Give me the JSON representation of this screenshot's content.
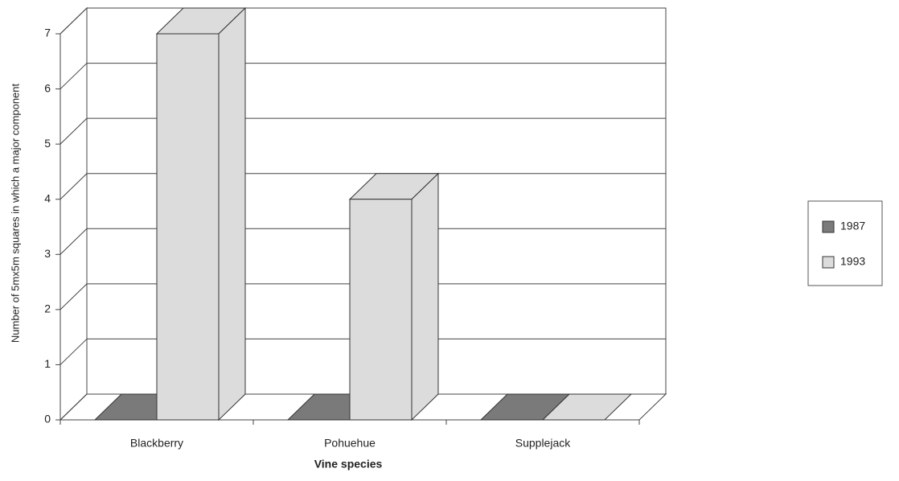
{
  "chart_data": {
    "type": "bar3d",
    "categories": [
      "Blackberry",
      "Pohuehue",
      "Supplejack"
    ],
    "series": [
      {
        "name": "1987",
        "color": "#7a7a7a",
        "values": [
          0,
          0,
          0
        ]
      },
      {
        "name": "1993",
        "color": "#dcdcdc",
        "values": [
          7,
          4,
          0
        ]
      }
    ],
    "xlabel": "Vine species",
    "ylabel": "Number of 5mx5m squares in which a major component",
    "ylim": [
      0,
      7
    ],
    "yticks": [
      0,
      1,
      2,
      3,
      4,
      5,
      6,
      7
    ],
    "grid": true,
    "legend": "right"
  }
}
